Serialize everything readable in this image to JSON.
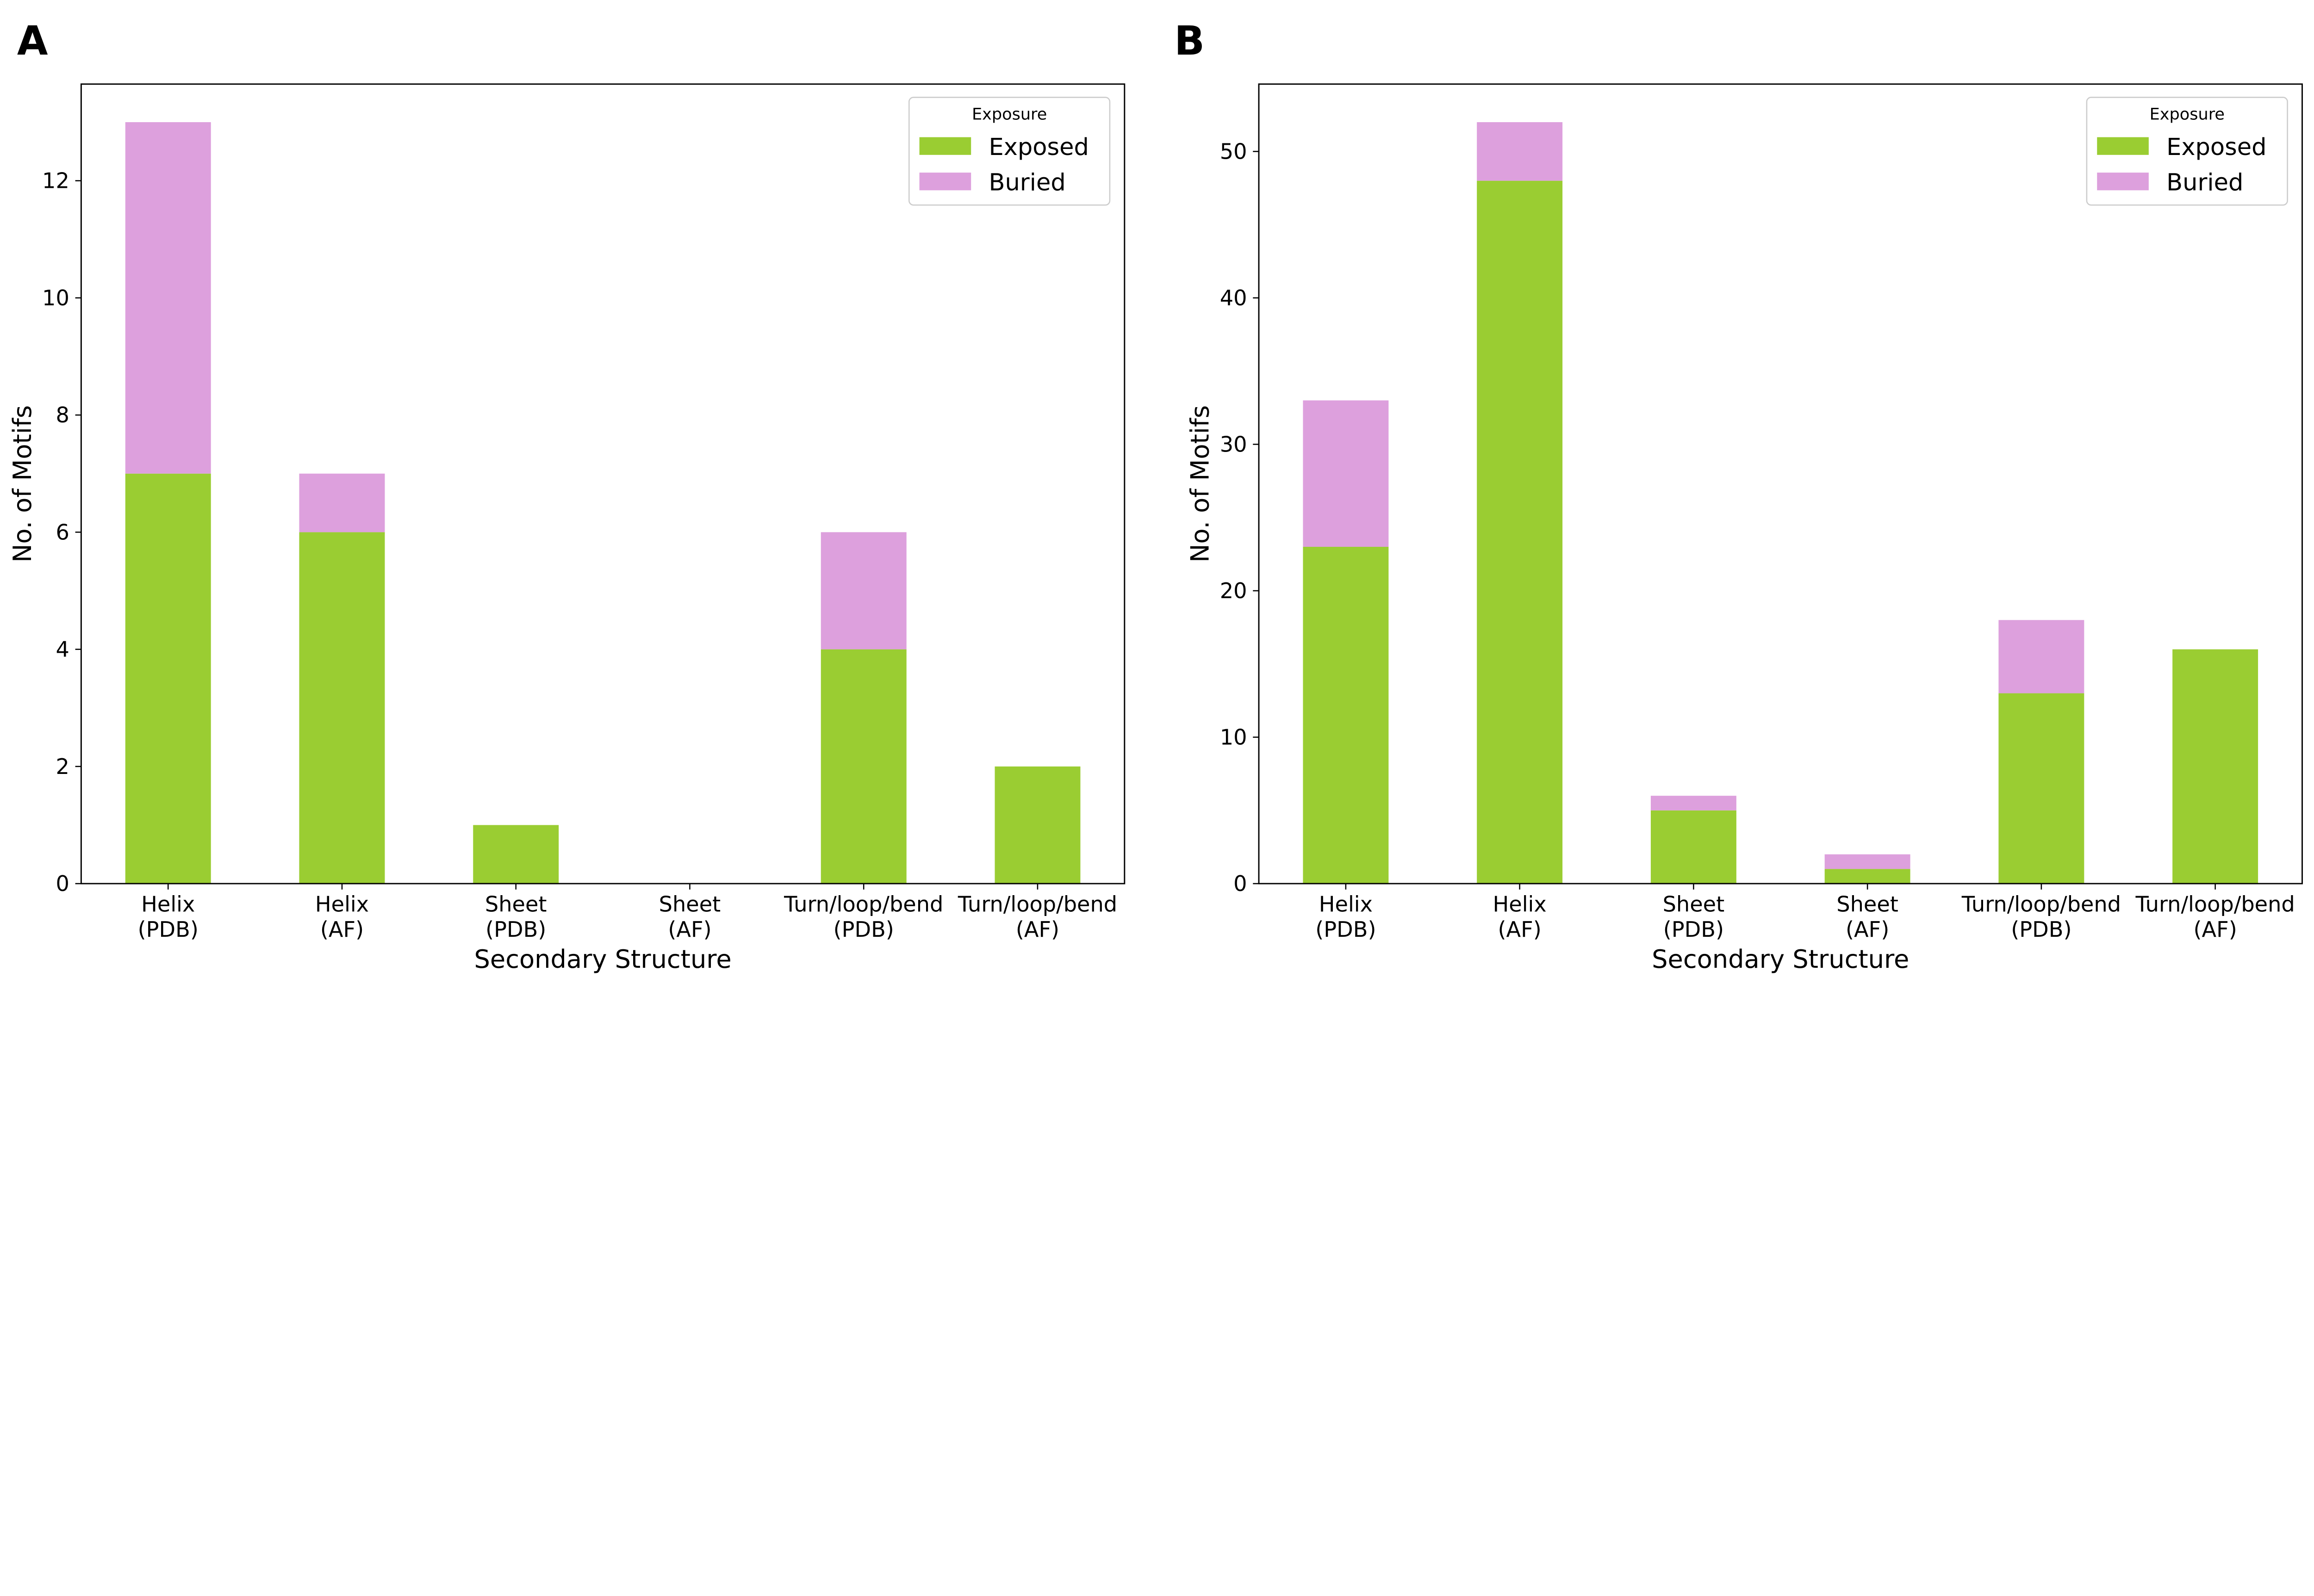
{
  "chart_data": [
    {
      "panel_label": "A",
      "type": "bar",
      "stacked": true,
      "categories": [
        [
          "Helix",
          "(PDB)"
        ],
        [
          "Helix",
          "(AF)"
        ],
        [
          "Sheet",
          "(PDB)"
        ],
        [
          "Sheet",
          "(AF)"
        ],
        [
          "Turn/loop/bend",
          "(PDB)"
        ],
        [
          "Turn/loop/bend",
          "(AF)"
        ]
      ],
      "series": [
        {
          "name": "Exposed",
          "values": [
            7,
            6,
            1,
            0,
            4,
            2
          ],
          "color": "#9ACD32"
        },
        {
          "name": "Buried",
          "values": [
            6,
            1,
            0,
            0,
            2,
            0
          ],
          "color": "#DDA0DD"
        }
      ],
      "xlabel": "Secondary Structure",
      "ylabel": "No. of Motifs",
      "ylim": [
        0,
        13.65
      ],
      "yticks": [
        0,
        2,
        4,
        6,
        8,
        10,
        12
      ],
      "legend": {
        "title": "Exposure",
        "placement": "top-right"
      },
      "grid": false
    },
    {
      "panel_label": "B",
      "type": "bar",
      "stacked": true,
      "categories": [
        [
          "Helix",
          "(PDB)"
        ],
        [
          "Helix",
          "(AF)"
        ],
        [
          "Sheet",
          "(PDB)"
        ],
        [
          "Sheet",
          "(AF)"
        ],
        [
          "Turn/loop/bend",
          "(PDB)"
        ],
        [
          "Turn/loop/bend",
          "(AF)"
        ]
      ],
      "series": [
        {
          "name": "Exposed",
          "values": [
            23,
            48,
            5,
            1,
            13,
            16
          ],
          "color": "#9ACD32"
        },
        {
          "name": "Buried",
          "values": [
            10,
            4,
            1,
            1,
            5,
            0
          ],
          "color": "#DDA0DD"
        }
      ],
      "xlabel": "Secondary Structure",
      "ylabel": "No. of Motifs",
      "ylim": [
        0,
        54.6
      ],
      "yticks": [
        0,
        10,
        20,
        30,
        40,
        50
      ],
      "legend": {
        "title": "Exposure",
        "placement": "top-right"
      },
      "grid": false
    }
  ]
}
